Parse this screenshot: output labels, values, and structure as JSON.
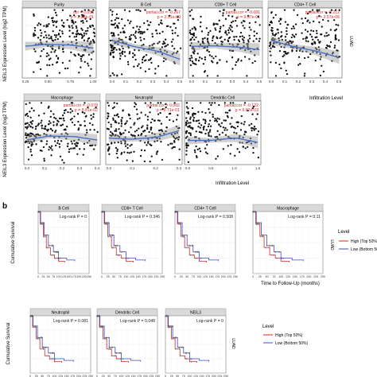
{
  "figure": {
    "panel_a_ylabel": "NEIL3 Expression Level (log2 TPM)",
    "panel_a_xlabel": "Infiltration Level",
    "panel_a_side_label": "LUAD",
    "panel_b_letter": "b",
    "panel_b_ylabel": "Cumulative Survival",
    "panel_b_xlabel": "Time to Follow-Up (months)",
    "panel_b_side_label": "LUAD",
    "legend_title": "Level",
    "legend_high": "High (Top 50%)",
    "legend_low": "Low (Bottom 50%)",
    "colors": {
      "scatter_point": "#111111",
      "fit_line": "#4a6fc7",
      "annotation": "#d62728",
      "high": "#d62728",
      "low": "#3b4cc0",
      "strip": "#d9d9d9"
    }
  },
  "chart_data": [
    {
      "type": "scatter",
      "panel": "a",
      "title": "Purity",
      "xticks": [
        "0.25",
        "0.50",
        "0.75",
        "1.00"
      ],
      "xlim": [
        0.1,
        1.0
      ],
      "annotation": [
        "cor = 0.053",
        "p = 2.38e-01"
      ]
    },
    {
      "type": "scatter",
      "panel": "a",
      "title": "B Cell",
      "xticks": [
        "0.0",
        "0.1",
        "0.2",
        "0.3",
        "0.4",
        "0.5"
      ],
      "xlim": [
        0.0,
        0.5
      ],
      "annotation": [
        "partial.cor = -0.267",
        "p = 2.51e-09"
      ]
    },
    {
      "type": "scatter",
      "panel": "a",
      "title": "CD8+ T Cell",
      "xticks": [
        "0.0",
        "0.1",
        "0.2",
        "0.3",
        "0.4",
        "0.5"
      ],
      "xlim": [
        0.0,
        0.5
      ],
      "annotation": [
        "partial.cor = -0.081",
        "p = 9.97e-01"
      ]
    },
    {
      "type": "scatter",
      "panel": "a",
      "title": "CD4+ T Cell",
      "xticks": [
        "0.0",
        "0.1",
        "0.2",
        "0.3",
        "0.4",
        "0.5"
      ],
      "xlim": [
        0.0,
        0.5
      ],
      "annotation": [
        "partial.cor = -0.212",
        "p = 2.57e-06"
      ]
    },
    {
      "type": "scatter",
      "panel": "a",
      "title": "Macrophage",
      "xticks": [
        "0.0",
        "0.1",
        "0.2",
        "0.3",
        "0.4"
      ],
      "xlim": [
        0.0,
        0.4
      ],
      "annotation": [
        "partial.cor = -0.078",
        "p = 8.81e-02"
      ]
    },
    {
      "type": "scatter",
      "panel": "a",
      "title": "Neutrophil",
      "xticks": [
        "0.0",
        "0.1",
        "0.2",
        "0.3"
      ],
      "xlim": [
        0.0,
        0.3
      ],
      "annotation": [
        "partial.cor = 0.002",
        "p = 9.71e-01"
      ]
    },
    {
      "type": "scatter",
      "panel": "a",
      "title": "Dendritic Cell",
      "xticks": [
        "0.0",
        "0.5",
        "1.0",
        "1.5"
      ],
      "xlim": [
        0.0,
        1.5
      ],
      "annotation": [
        "partial.cor = -0.122",
        "p = 6.87e-03"
      ]
    },
    {
      "type": "line",
      "panel": "b",
      "title": "B Cell",
      "logrank": "Log-rank P = 0",
      "xticks": [
        "0",
        "25",
        "50",
        "75",
        "100",
        "125",
        "150",
        "175",
        "200",
        "225",
        "250"
      ],
      "xlim": [
        0,
        250
      ],
      "ylim": [
        0,
        1
      ]
    },
    {
      "type": "line",
      "panel": "b",
      "title": "CD8+ T Cell",
      "logrank": "Log-rank P = 0.346",
      "xticks": [
        "0",
        "25",
        "50",
        "75",
        "100",
        "125",
        "150",
        "175",
        "200",
        "225",
        "250"
      ],
      "xlim": [
        0,
        250
      ],
      "ylim": [
        0,
        1
      ]
    },
    {
      "type": "line",
      "panel": "b",
      "title": "CD4+ T Cell",
      "logrank": "Log-rank P = 0.508",
      "xticks": [
        "0",
        "25",
        "50",
        "75",
        "100",
        "125",
        "150",
        "175",
        "200",
        "225",
        "250"
      ],
      "xlim": [
        0,
        250
      ],
      "ylim": [
        0,
        1
      ]
    },
    {
      "type": "line",
      "panel": "b",
      "title": "Macrophage",
      "logrank": "Log-rank P = 0.11",
      "xticks": [
        "0",
        "25",
        "50",
        "75",
        "100",
        "125",
        "150",
        "175",
        "200",
        "225",
        "250"
      ],
      "xlim": [
        0,
        250
      ],
      "ylim": [
        0,
        1
      ]
    },
    {
      "type": "line",
      "panel": "b",
      "title": "Neutrophil",
      "logrank": "Log-rank P = 0.081",
      "xticks": [
        "0",
        "25",
        "50",
        "75",
        "100",
        "125",
        "150",
        "175",
        "200",
        "225",
        "250"
      ],
      "xlim": [
        0,
        250
      ],
      "ylim": [
        0,
        1
      ]
    },
    {
      "type": "line",
      "panel": "b",
      "title": "Dendritic Cell",
      "logrank": "Log-rank P = 0.048",
      "xticks": [
        "0",
        "25",
        "50",
        "75",
        "100",
        "125",
        "150",
        "175",
        "200",
        "225",
        "250"
      ],
      "xlim": [
        0,
        250
      ],
      "ylim": [
        0,
        1
      ]
    },
    {
      "type": "line",
      "panel": "b",
      "title": "NEIL3",
      "logrank": "Log-rank P = 0",
      "xticks": [
        "0",
        "25",
        "50",
        "75",
        "100",
        "125",
        "150",
        "175",
        "200",
        "225",
        "250"
      ],
      "xlim": [
        0,
        250
      ],
      "ylim": [
        0,
        1
      ]
    }
  ]
}
